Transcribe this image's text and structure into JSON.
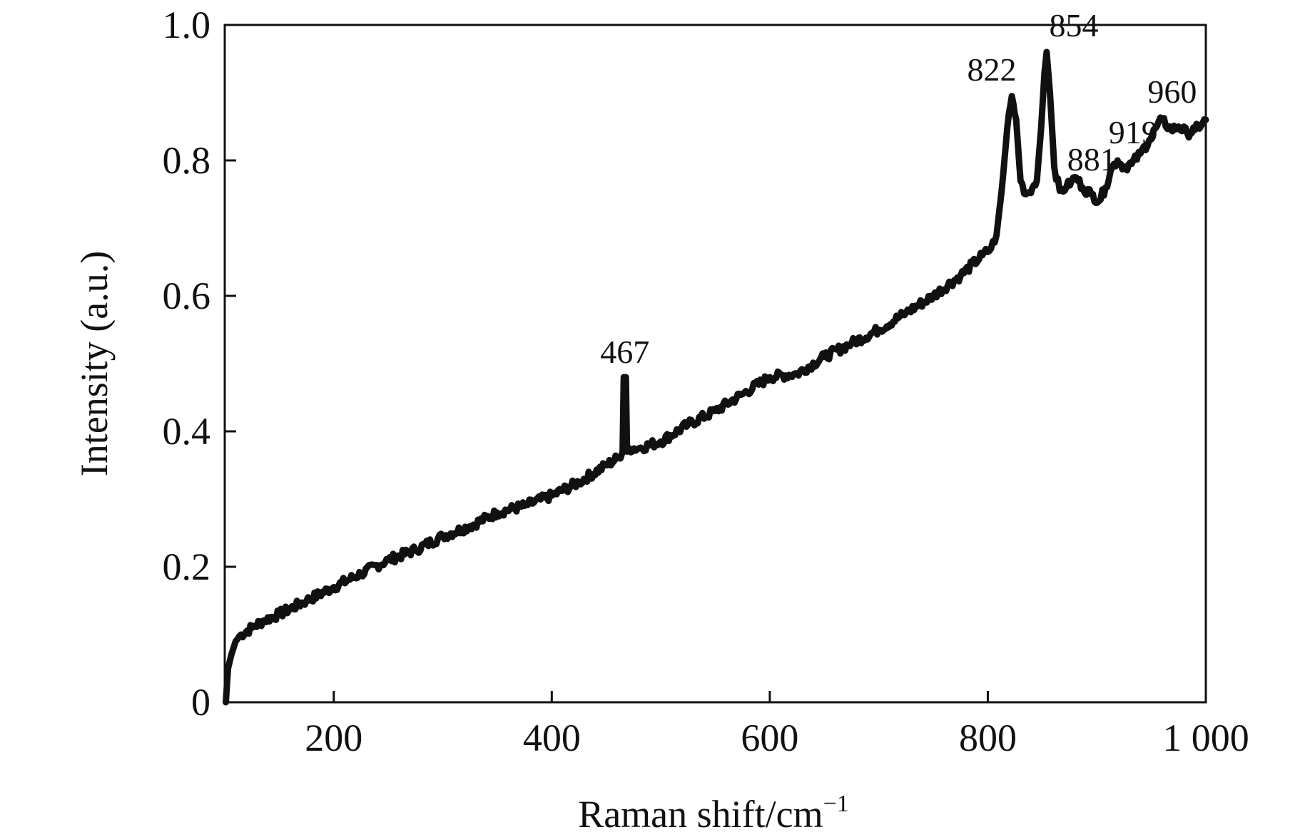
{
  "chart_data": {
    "type": "line",
    "title": "",
    "xlabel": "Raman shift/cm",
    "xlabel_superscript": "−1",
    "ylabel": "Intensity (a.u.)",
    "xlim": [
      100,
      1000
    ],
    "ylim": [
      0,
      1.0
    ],
    "x_ticks": [
      200,
      400,
      600,
      800,
      1000
    ],
    "x_tick_labels": [
      "200",
      "400",
      "600",
      "800",
      "1 000"
    ],
    "y_ticks": [
      0,
      0.2,
      0.4,
      0.6,
      0.8,
      1.0
    ],
    "y_tick_labels": [
      "0",
      "0.2",
      "0.4",
      "0.6",
      "0.8",
      "1.0"
    ],
    "grid": false,
    "legend": "none",
    "line_color": "#111111",
    "series": [
      {
        "points": [
          [
            101,
            0.0
          ],
          [
            103,
            0.05
          ],
          [
            106,
            0.07
          ],
          [
            110,
            0.09
          ],
          [
            115,
            0.1
          ],
          [
            125,
            0.11
          ],
          [
            135,
            0.12
          ],
          [
            150,
            0.13
          ],
          [
            175,
            0.15
          ],
          [
            200,
            0.17
          ],
          [
            225,
            0.19
          ],
          [
            250,
            0.21
          ],
          [
            275,
            0.225
          ],
          [
            300,
            0.245
          ],
          [
            325,
            0.26
          ],
          [
            350,
            0.28
          ],
          [
            375,
            0.29
          ],
          [
            400,
            0.305
          ],
          [
            425,
            0.325
          ],
          [
            450,
            0.35
          ],
          [
            460,
            0.36
          ],
          [
            463,
            0.36
          ],
          [
            465,
            0.37
          ],
          [
            466,
            0.48
          ],
          [
            468,
            0.48
          ],
          [
            469,
            0.37
          ],
          [
            471,
            0.375
          ],
          [
            480,
            0.375
          ],
          [
            500,
            0.385
          ],
          [
            525,
            0.41
          ],
          [
            550,
            0.43
          ],
          [
            575,
            0.455
          ],
          [
            600,
            0.48
          ],
          [
            625,
            0.485
          ],
          [
            650,
            0.51
          ],
          [
            675,
            0.53
          ],
          [
            700,
            0.55
          ],
          [
            725,
            0.575
          ],
          [
            750,
            0.6
          ],
          [
            775,
            0.63
          ],
          [
            795,
            0.66
          ],
          [
            803,
            0.67
          ],
          [
            808,
            0.69
          ],
          [
            813,
            0.76
          ],
          [
            818,
            0.85
          ],
          [
            822,
            0.895
          ],
          [
            826,
            0.86
          ],
          [
            830,
            0.77
          ],
          [
            835,
            0.75
          ],
          [
            841,
            0.76
          ],
          [
            845,
            0.77
          ],
          [
            849,
            0.85
          ],
          [
            852,
            0.93
          ],
          [
            854,
            0.96
          ],
          [
            857,
            0.9
          ],
          [
            861,
            0.79
          ],
          [
            866,
            0.755
          ],
          [
            872,
            0.76
          ],
          [
            877,
            0.77
          ],
          [
            881,
            0.775
          ],
          [
            887,
            0.76
          ],
          [
            895,
            0.75
          ],
          [
            902,
            0.74
          ],
          [
            908,
            0.76
          ],
          [
            914,
            0.79
          ],
          [
            919,
            0.8
          ],
          [
            925,
            0.79
          ],
          [
            932,
            0.795
          ],
          [
            940,
            0.81
          ],
          [
            948,
            0.83
          ],
          [
            955,
            0.85
          ],
          [
            960,
            0.86
          ],
          [
            968,
            0.845
          ],
          [
            975,
            0.85
          ],
          [
            983,
            0.84
          ],
          [
            990,
            0.845
          ],
          [
            997,
            0.855
          ],
          [
            1000,
            0.86
          ]
        ]
      }
    ],
    "annotations": [
      {
        "text": "467",
        "x": 467,
        "y": 0.48
      },
      {
        "text": "822",
        "x": 822,
        "y": 0.895
      },
      {
        "text": "854",
        "x": 854,
        "y": 0.96
      },
      {
        "text": "881",
        "x": 881,
        "y": 0.775
      },
      {
        "text": "919",
        "x": 919,
        "y": 0.8
      },
      {
        "text": "960",
        "x": 960,
        "y": 0.86
      }
    ]
  }
}
